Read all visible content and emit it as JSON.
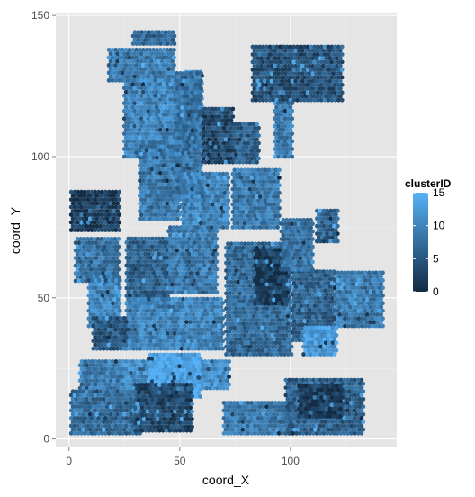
{
  "chart_data": {
    "type": "scatter",
    "xlabel": "coord_X",
    "ylabel": "coord_Y",
    "xlim": [
      -6,
      148
    ],
    "ylim": [
      -3,
      151
    ],
    "x_ticks": [
      0,
      50,
      100
    ],
    "y_ticks": [
      0,
      50,
      100,
      150
    ],
    "x_tick_labels": [
      "0",
      "50",
      "100"
    ],
    "y_tick_labels": [
      "0",
      "50",
      "100",
      "150"
    ],
    "grid": true,
    "background": "#e5e5e5",
    "legend": {
      "title": "clusterID",
      "position": "right",
      "min": 0,
      "max": 15,
      "ticks": [
        0,
        5,
        10,
        15
      ],
      "tick_labels": [
        "0",
        "5",
        "10",
        "15"
      ],
      "low_color": "#132b43",
      "high_color": "#56b1f7"
    },
    "patches": [
      {
        "x": [
          29,
          48
        ],
        "y": [
          140,
          145
        ],
        "c": 7
      },
      {
        "x": [
          18,
          48
        ],
        "y": [
          127,
          138
        ],
        "c": 9
      },
      {
        "x": [
          25,
          53
        ],
        "y": [
          100,
          127
        ],
        "c": 10
      },
      {
        "x": [
          53,
          60
        ],
        "y": [
          103,
          130
        ],
        "c": 11
      },
      {
        "x": [
          60,
          74
        ],
        "y": [
          98,
          118
        ],
        "c": 3
      },
      {
        "x": [
          74,
          86
        ],
        "y": [
          98,
          112
        ],
        "c": 6
      },
      {
        "x": [
          83,
          124
        ],
        "y": [
          120,
          140
        ],
        "c": 4
      },
      {
        "x": [
          93,
          101
        ],
        "y": [
          100,
          120
        ],
        "c": 9
      },
      {
        "x": [
          48,
          60
        ],
        "y": [
          85,
          130
        ],
        "c": 8
      },
      {
        "x": [
          32,
          50
        ],
        "y": [
          78,
          105
        ],
        "c": 9
      },
      {
        "x": [
          1,
          23
        ],
        "y": [
          74,
          88
        ],
        "c": 2
      },
      {
        "x": [
          51,
          72
        ],
        "y": [
          75,
          95
        ],
        "c": 10
      },
      {
        "x": [
          74,
          95
        ],
        "y": [
          75,
          96
        ],
        "c": 9
      },
      {
        "x": [
          3,
          23
        ],
        "y": [
          56,
          72
        ],
        "c": 8
      },
      {
        "x": [
          9,
          23
        ],
        "y": [
          40,
          58
        ],
        "c": 10
      },
      {
        "x": [
          26,
          45
        ],
        "y": [
          48,
          72
        ],
        "c": 6
      },
      {
        "x": [
          45,
          67
        ],
        "y": [
          52,
          75
        ],
        "c": 9
      },
      {
        "x": [
          71,
          101
        ],
        "y": [
          30,
          70
        ],
        "c": 7
      },
      {
        "x": [
          84,
          99
        ],
        "y": [
          48,
          68
        ],
        "c": 2
      },
      {
        "x": [
          101,
          120
        ],
        "y": [
          35,
          60
        ],
        "c": 6
      },
      {
        "x": [
          120,
          142
        ],
        "y": [
          40,
          60
        ],
        "c": 9
      },
      {
        "x": [
          106,
          121
        ],
        "y": [
          30,
          40
        ],
        "c": 13
      },
      {
        "x": [
          26,
          70
        ],
        "y": [
          32,
          50
        ],
        "c": 10
      },
      {
        "x": [
          11,
          26
        ],
        "y": [
          32,
          44
        ],
        "c": 5
      },
      {
        "x": [
          5,
          25
        ],
        "y": [
          18,
          28
        ],
        "c": 9
      },
      {
        "x": [
          25,
          73
        ],
        "y": [
          18,
          28
        ],
        "c": 11
      },
      {
        "x": [
          36,
          60
        ],
        "y": [
          15,
          30
        ],
        "c": 14
      },
      {
        "x": [
          1,
          33
        ],
        "y": [
          2,
          18
        ],
        "c": 7
      },
      {
        "x": [
          30,
          56
        ],
        "y": [
          3,
          20
        ],
        "c": 3
      },
      {
        "x": [
          70,
          102
        ],
        "y": [
          2,
          14
        ],
        "c": 9
      },
      {
        "x": [
          98,
          133
        ],
        "y": [
          2,
          22
        ],
        "c": 6
      },
      {
        "x": [
          104,
          124
        ],
        "y": [
          8,
          20
        ],
        "c": 2
      },
      {
        "x": [
          112,
          122
        ],
        "y": [
          70,
          82
        ],
        "c": 6
      },
      {
        "x": [
          96,
          110
        ],
        "y": [
          60,
          78
        ],
        "c": 8
      }
    ]
  }
}
